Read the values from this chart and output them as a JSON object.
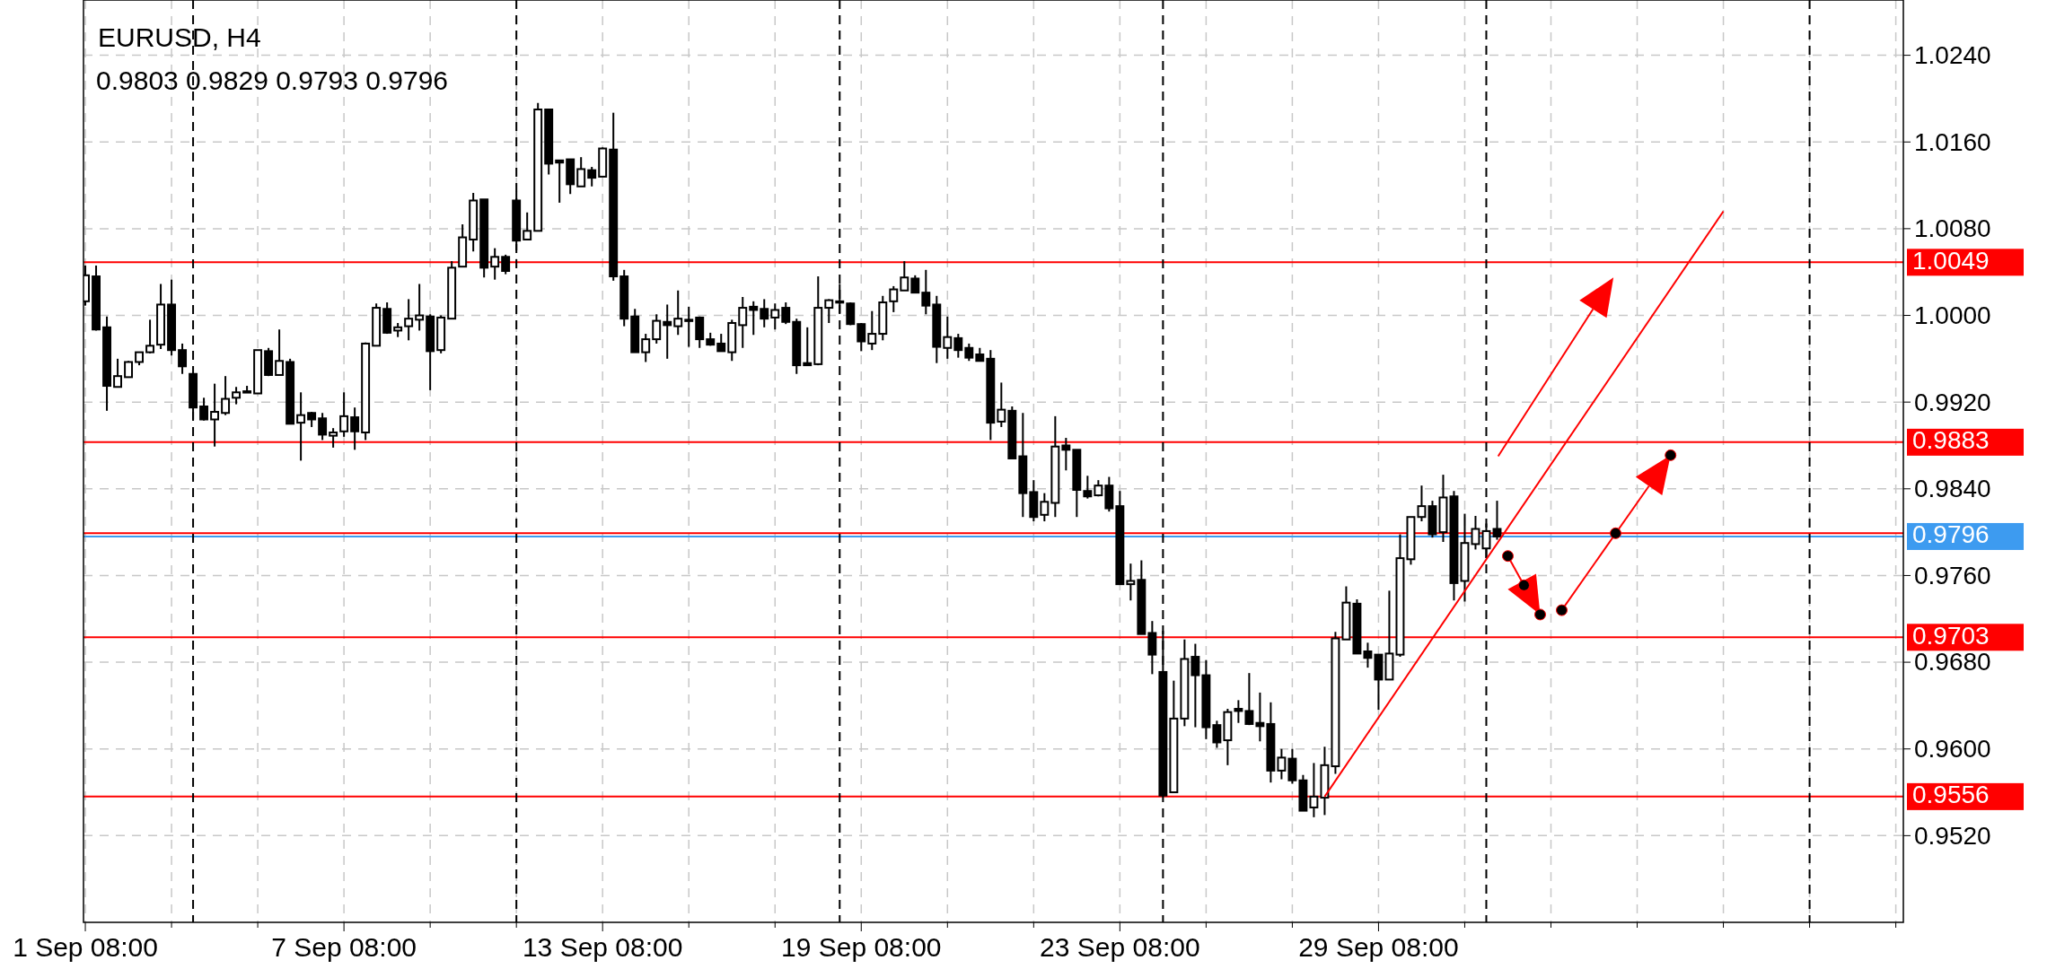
{
  "chart_data": {
    "type": "candlestick",
    "title": "EURUSD, H4",
    "subtitle": "0.9803 0.9829 0.9793 0.9796",
    "categories": [
      "1 Sep 08:00",
      null,
      null,
      null,
      null,
      null,
      null,
      null,
      null,
      null,
      null,
      null,
      null,
      null,
      null,
      null,
      null,
      null,
      null,
      null,
      null,
      null,
      null,
      null,
      "7 Sep 08:00",
      null,
      null,
      null,
      null,
      null,
      null,
      null,
      null,
      null,
      null,
      null,
      null,
      null,
      null,
      null,
      null,
      null,
      null,
      null,
      null,
      null,
      null,
      null,
      "13 Sep 08:00",
      null,
      null,
      null,
      null,
      null,
      null,
      null,
      null,
      null,
      null,
      null,
      null,
      null,
      null,
      null,
      null,
      null,
      null,
      null,
      null,
      null,
      null,
      null,
      "19 Sep 08:00",
      null,
      null,
      null,
      null,
      null,
      null,
      null,
      null,
      null,
      null,
      null,
      null,
      null,
      null,
      null,
      null,
      null,
      null,
      null,
      null,
      null,
      null,
      null,
      "23 Sep 08:00",
      null,
      null,
      null,
      null,
      null,
      null,
      null,
      null,
      null,
      null,
      null,
      null,
      null,
      null,
      null,
      null,
      null,
      null,
      null,
      null,
      null,
      null,
      null,
      "29 Sep 08:00",
      null,
      null,
      null,
      null,
      null,
      null,
      null,
      null,
      null,
      null,
      null,
      null,
      null,
      null,
      null,
      null,
      null,
      null,
      null,
      null,
      null,
      null,
      null,
      null,
      null,
      null,
      null,
      null,
      null,
      null,
      null,
      null,
      null,
      null,
      null,
      null,
      null,
      null,
      null,
      null,
      null,
      null,
      null,
      null,
      null,
      null,
      null,
      null
    ],
    "ohlc": [
      [
        1.0013,
        1.0046,
        1.0009,
        1.0037
      ],
      [
        1.0036,
        1.0046,
        0.9986,
        0.9987
      ],
      [
        0.9989,
        0.9999,
        0.9912,
        0.9935
      ],
      [
        0.9934,
        0.996,
        0.9934,
        0.9944
      ],
      [
        0.9943,
        0.9958,
        0.9943,
        0.9957
      ],
      [
        0.9957,
        0.9966,
        0.9954,
        0.9966
      ],
      [
        0.9966,
        0.9996,
        0.9965,
        0.9972
      ],
      [
        0.9973,
        1.0029,
        0.9969,
        1.001
      ],
      [
        1.001,
        1.0033,
        0.9963,
        0.9968
      ],
      [
        0.9968,
        0.9974,
        0.9946,
        0.9953
      ],
      [
        0.9946,
        0.9946,
        0.9904,
        0.9915
      ],
      [
        0.9916,
        0.9924,
        0.9903,
        0.9904
      ],
      [
        0.9904,
        0.9937,
        0.9879,
        0.9911
      ],
      [
        0.991,
        0.9944,
        0.9908,
        0.9923
      ],
      [
        0.9924,
        0.9934,
        0.9918,
        0.9929
      ],
      [
        0.993,
        0.9935,
        0.9929,
        0.9929
      ],
      [
        0.9928,
        0.9968,
        0.9928,
        0.9968
      ],
      [
        0.9967,
        0.997,
        0.9944,
        0.9945
      ],
      [
        0.9945,
        0.9987,
        0.9945,
        0.9958
      ],
      [
        0.9957,
        0.996,
        0.99,
        0.99
      ],
      [
        0.9901,
        0.9929,
        0.9866,
        0.9908
      ],
      [
        0.991,
        0.9911,
        0.9897,
        0.9904
      ],
      [
        0.9905,
        0.991,
        0.9885,
        0.989
      ],
      [
        0.9889,
        0.9896,
        0.9878,
        0.9892
      ],
      [
        0.9893,
        0.9929,
        0.9888,
        0.9907
      ],
      [
        0.9906,
        0.9915,
        0.9876,
        0.9893
      ],
      [
        0.9892,
        0.9975,
        0.9885,
        0.9974
      ],
      [
        0.9972,
        1.0011,
        0.9972,
        1.0007
      ],
      [
        1.0006,
        1.0012,
        0.9983,
        0.9984
      ],
      [
        0.9986,
        0.9993,
        0.998,
        0.9989
      ],
      [
        0.999,
        1.0015,
        0.9977,
        0.9997
      ],
      [
        0.9996,
        1.0029,
        0.9986,
        1
      ],
      [
        0.9999,
        1.0001,
        0.9931,
        0.9967
      ],
      [
        0.9968,
        1,
        0.9965,
        0.9998
      ],
      [
        0.9997,
        1.005,
        0.9997,
        1.0044
      ],
      [
        1.0045,
        1.0084,
        1.0045,
        1.0072
      ],
      [
        1.007,
        1.0113,
        1.0059,
        1.0106
      ],
      [
        1.0107,
        1.0107,
        1.0035,
        1.0044
      ],
      [
        1.0045,
        1.0062,
        1.0033,
        1.0054
      ],
      [
        1.0054,
        1.0056,
        1.0038,
        1.0041
      ],
      [
        1.0106,
        1.0114,
        1.006,
        1.0069
      ],
      [
        1.007,
        1.0095,
        1.007,
        1.0078
      ],
      [
        1.0078,
        1.0196,
        1.0078,
        1.019
      ],
      [
        1.019,
        1.019,
        1.013,
        1.014
      ],
      [
        1.0143,
        1.0143,
        1.0104,
        1.0141
      ],
      [
        1.0144,
        1.0144,
        1.0112,
        1.0121
      ],
      [
        1.0119,
        1.0146,
        1.0119,
        1.0135
      ],
      [
        1.0134,
        1.0137,
        1.0119,
        1.0127
      ],
      [
        1.0128,
        1.0155,
        1.0128,
        1.0154
      ],
      [
        1.0153,
        1.0187,
        1.0032,
        1.0036
      ],
      [
        1.0036,
        1.0042,
        0.999,
        0.9997
      ],
      [
        0.9999,
        1.0006,
        0.9966,
        0.9966
      ],
      [
        0.9966,
        0.9983,
        0.9957,
        0.9978
      ],
      [
        0.9978,
        1.0001,
        0.9974,
        0.9995
      ],
      [
        0.9994,
        1.001,
        0.996,
        0.9991
      ],
      [
        0.999,
        1.0023,
        0.9982,
        0.9997
      ],
      [
        0.9996,
        1.0008,
        0.9971,
        0.9995
      ],
      [
        0.9998,
        0.9999,
        0.997,
        0.9978
      ],
      [
        0.9978,
        0.9984,
        0.9972,
        0.9973
      ],
      [
        0.9974,
        0.9983,
        0.9967,
        0.9967
      ],
      [
        0.9966,
        0.9996,
        0.9958,
        0.9993
      ],
      [
        0.9991,
        1.0017,
        0.997,
        1.0007
      ],
      [
        1.0008,
        1.0013,
        0.9982,
        1.0005
      ],
      [
        1.0006,
        1.0015,
        0.9989,
        0.9997
      ],
      [
        0.9998,
        1.0011,
        0.9987,
        1.0005
      ],
      [
        1.0007,
        1.0012,
        0.9992,
        0.9994
      ],
      [
        0.9994,
        0.9997,
        0.9946,
        0.9954
      ],
      [
        0.9956,
        0.9989,
        0.9954,
        0.9954
      ],
      [
        0.9955,
        1.0036,
        0.9954,
        1.0007
      ],
      [
        1.0007,
        1.0015,
        0.9993,
        1.0014
      ],
      [
        1.0013,
        1.0029,
        1.0002,
        1.0012
      ],
      [
        1.0011,
        1.0012,
        0.9991,
        0.9992
      ],
      [
        0.9992,
        0.9993,
        0.9967,
        0.9976
      ],
      [
        0.9974,
        1.0004,
        0.9968,
        0.9983
      ],
      [
        0.9983,
        1.0018,
        0.9977,
        1.0012
      ],
      [
        1.0013,
        1.0027,
        1.0003,
        1.0024
      ],
      [
        1.0023,
        1.005,
        1.0023,
        1.0035
      ],
      [
        1.0034,
        1.0037,
        1.0021,
        1.0021
      ],
      [
        1.0021,
        1.0042,
        1.0001,
        1.0009
      ],
      [
        1.001,
        1.0018,
        0.9956,
        0.9971
      ],
      [
        0.997,
        0.9999,
        0.996,
        0.998
      ],
      [
        0.9979,
        0.9983,
        0.9961,
        0.9968
      ],
      [
        0.997,
        0.9974,
        0.9958,
        0.9961
      ],
      [
        0.9964,
        0.997,
        0.9958,
        0.9958
      ],
      [
        0.996,
        0.9968,
        0.9885,
        0.9901
      ],
      [
        0.9902,
        0.9938,
        0.9897,
        0.9913
      ],
      [
        0.9912,
        0.9916,
        0.9868,
        0.9868
      ],
      [
        0.987,
        0.991,
        0.9814,
        0.9836
      ],
      [
        0.9837,
        0.9848,
        0.981,
        0.9814
      ],
      [
        0.9816,
        0.9836,
        0.981,
        0.9828
      ],
      [
        0.9827,
        0.9907,
        0.9814,
        0.9879
      ],
      [
        0.988,
        0.9887,
        0.9857,
        0.9876
      ],
      [
        0.9876,
        0.9876,
        0.9814,
        0.9839
      ],
      [
        0.9838,
        0.9852,
        0.9831,
        0.9833
      ],
      [
        0.9834,
        0.9848,
        0.9833,
        0.9843
      ],
      [
        0.9843,
        0.9851,
        0.9819,
        0.9822
      ],
      [
        0.9824,
        0.9838,
        0.9752,
        0.9752
      ],
      [
        0.9752,
        0.9771,
        0.9737,
        0.9755
      ],
      [
        0.9756,
        0.9774,
        0.9706,
        0.9706
      ],
      [
        0.9707,
        0.9718,
        0.9669,
        0.9687
      ],
      [
        0.9671,
        0.9709,
        0.9556,
        0.9557
      ],
      [
        0.956,
        0.9663,
        0.956,
        0.9628
      ],
      [
        0.9628,
        0.9701,
        0.9621,
        0.9683
      ],
      [
        0.9685,
        0.9697,
        0.962,
        0.9668
      ],
      [
        0.9668,
        0.9682,
        0.9609,
        0.962
      ],
      [
        0.9622,
        0.9626,
        0.9601,
        0.9606
      ],
      [
        0.9608,
        0.9637,
        0.9585,
        0.9634
      ],
      [
        0.9637,
        0.9645,
        0.9624,
        0.9635
      ],
      [
        0.9635,
        0.967,
        0.9622,
        0.9623
      ],
      [
        0.9624,
        0.9652,
        0.9607,
        0.9621
      ],
      [
        0.9623,
        0.9643,
        0.9569,
        0.958
      ],
      [
        0.958,
        0.96,
        0.9572,
        0.9592
      ],
      [
        0.9591,
        0.96,
        0.9568,
        0.9571
      ],
      [
        0.9571,
        0.9576,
        0.9543,
        0.9543
      ],
      [
        0.9546,
        0.9587,
        0.9537,
        0.9556
      ],
      [
        0.9555,
        0.9602,
        0.9539,
        0.9585
      ],
      [
        0.9584,
        0.9708,
        0.9577,
        0.9702
      ],
      [
        0.9701,
        0.975,
        0.9701,
        0.9735
      ],
      [
        0.9734,
        0.9738,
        0.9688,
        0.9688
      ],
      [
        0.969,
        0.9698,
        0.9675,
        0.9684
      ],
      [
        0.9687,
        0.9687,
        0.9636,
        0.9664
      ],
      [
        0.9664,
        0.9746,
        0.9664,
        0.9688
      ],
      [
        0.9687,
        0.9798,
        0.9685,
        0.9776
      ],
      [
        0.9775,
        0.9814,
        0.977,
        0.9814
      ],
      [
        0.9814,
        0.9843,
        0.981,
        0.9824
      ],
      [
        0.9824,
        0.9829,
        0.9795,
        0.9798
      ],
      [
        0.98,
        0.9853,
        0.9791,
        0.9832
      ],
      [
        0.9833,
        0.9838,
        0.9737,
        0.9753
      ],
      [
        0.9755,
        0.9817,
        0.9736,
        0.979
      ],
      [
        0.9789,
        0.9815,
        0.9784,
        0.9803
      ],
      [
        0.9785,
        0.9808,
        0.9776,
        0.9801
      ],
      [
        0.9803,
        0.9829,
        0.9793,
        0.9796
      ],
      null,
      null,
      null,
      null,
      null,
      null,
      null,
      null,
      null,
      null,
      null,
      null,
      null,
      null,
      null,
      null,
      null,
      null,
      null,
      null,
      null,
      null,
      null,
      null,
      null,
      null,
      null,
      null,
      null,
      null,
      null,
      null,
      null,
      null,
      null,
      null,
      null
    ],
    "series": [
      {
        "type": "line",
        "values": [
          null,
          null,
          null,
          null,
          null,
          null,
          null,
          null,
          null,
          null,
          null,
          null,
          null,
          null,
          null,
          null,
          null,
          null,
          null,
          null,
          null,
          null,
          null,
          null,
          null,
          null,
          null,
          null,
          null,
          null,
          null,
          null,
          null,
          null,
          null,
          null,
          null,
          null,
          null,
          null,
          null,
          null,
          null,
          null,
          null,
          null,
          null,
          null,
          null,
          null,
          null,
          null,
          null,
          null,
          null,
          null,
          null,
          null,
          null,
          null,
          null,
          null,
          null,
          null,
          null,
          null,
          null,
          null,
          null,
          null,
          null,
          null,
          null,
          null,
          null,
          null,
          null,
          null,
          null,
          null,
          null,
          null,
          null,
          null,
          null,
          null,
          null,
          null,
          null,
          null,
          null,
          null,
          null,
          null,
          null,
          null,
          null,
          null,
          null,
          null,
          null,
          null,
          null,
          null,
          null,
          null,
          null,
          null,
          null,
          null,
          null,
          null,
          null,
          null,
          null,
          0.9556,
          null,
          null,
          null,
          null,
          null,
          null,
          null,
          null,
          null,
          null,
          null,
          null,
          null,
          null,
          null,
          null,
          null,
          null,
          null,
          null,
          null,
          null,
          null,
          null,
          null,
          null,
          null,
          null,
          null,
          null,
          null,
          null,
          null,
          null,
          null,
          null,
          1.0096,
          null,
          null,
          null,
          null,
          null,
          null,
          null,
          null,
          null,
          null,
          null,
          null,
          null,
          null,
          null,
          null
        ],
        "color": "#ff0000"
      }
    ],
    "ylim": [
      0.944,
      1.0291
    ],
    "yticks": [
      {
        "value": 0.952,
        "label": "0.9520"
      },
      {
        "value": 0.96,
        "label": "0.9600"
      },
      {
        "value": 0.968,
        "label": "0.9680"
      },
      {
        "value": 0.976,
        "label": "0.9760"
      },
      {
        "value": 0.984,
        "label": "0.9840"
      },
      {
        "value": 0.992,
        "label": "0.9920"
      },
      {
        "value": 1.0,
        "label": "1.0000"
      },
      {
        "value": 1.008,
        "label": "1.0080"
      },
      {
        "value": 1.016,
        "label": "1.0160"
      },
      {
        "value": 1.024,
        "label": "1.0240"
      }
    ],
    "grid": true,
    "ref_lines": [
      {
        "axis": "y",
        "value": 1.0049,
        "label": "1.0049",
        "color": "#ff0000"
      },
      {
        "axis": "y",
        "value": 0.9883,
        "label": "0.9883",
        "color": "#ff0000"
      },
      {
        "axis": "y",
        "value": 0.9799,
        "label": null,
        "color": "#ff0000"
      },
      {
        "axis": "y",
        "value": 0.9796,
        "label": "0.9796",
        "color": "#3d9bf0"
      },
      {
        "axis": "y",
        "value": 0.9703,
        "label": "0.9703",
        "color": "#ff0000"
      },
      {
        "axis": "y",
        "value": 0.9556,
        "label": "0.9556",
        "color": "#ff0000"
      }
    ]
  }
}
